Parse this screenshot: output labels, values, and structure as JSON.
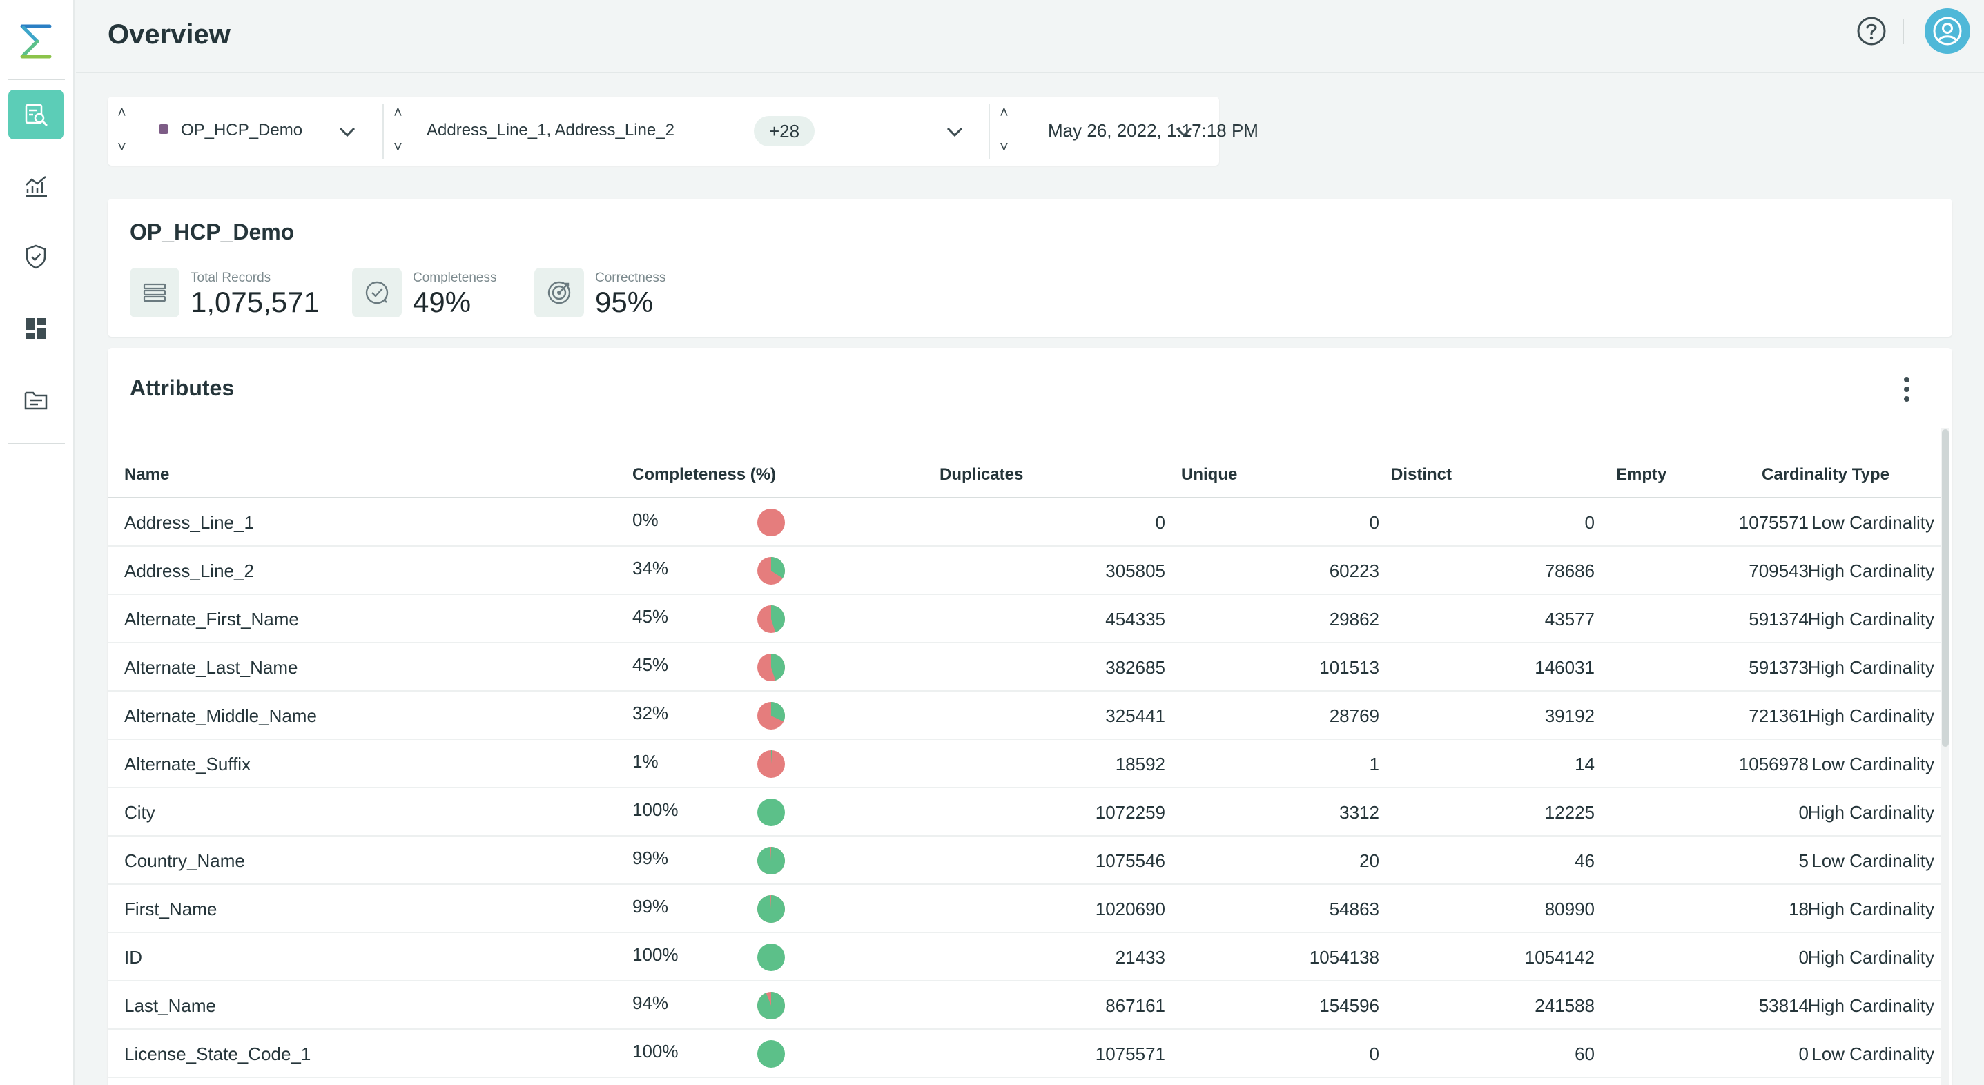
{
  "header": {
    "title": "Overview"
  },
  "colors": {
    "accent": "#5ccdb7",
    "pie_complete": "#5cc089",
    "pie_empty": "#e57d7d",
    "avatar": "#4fb8d8"
  },
  "filters": {
    "dataset": "OP_HCP_Demo",
    "attributes": "Address_Line_1, Address_Line_2",
    "attributes_more": "+28",
    "timestamp": "May 26, 2022, 1:17:18 PM"
  },
  "summary": {
    "title": "OP_HCP_Demo",
    "kpis": [
      {
        "label": "Total Records",
        "value": "1,075,571",
        "icon": "records-icon"
      },
      {
        "label": "Completeness",
        "value": "49%",
        "icon": "completeness-icon"
      },
      {
        "label": "Correctness",
        "value": "95%",
        "icon": "target-icon"
      }
    ]
  },
  "attributes": {
    "title": "Attributes",
    "columns": [
      "Name",
      "Completeness (%)",
      "Duplicates",
      "Unique",
      "Distinct",
      "Empty",
      "Cardinality Type"
    ],
    "rows": [
      {
        "name": "Address_Line_1",
        "completeness": "0%",
        "pct": 0,
        "duplicates": "0",
        "unique": "0",
        "distinct": "0",
        "empty": "1075571",
        "cardinality": "Low Cardinality"
      },
      {
        "name": "Address_Line_2",
        "completeness": "34%",
        "pct": 34,
        "duplicates": "305805",
        "unique": "60223",
        "distinct": "78686",
        "empty": "709543",
        "cardinality": "High Cardinality"
      },
      {
        "name": "Alternate_First_Name",
        "completeness": "45%",
        "pct": 45,
        "duplicates": "454335",
        "unique": "29862",
        "distinct": "43577",
        "empty": "591374",
        "cardinality": "High Cardinality"
      },
      {
        "name": "Alternate_Last_Name",
        "completeness": "45%",
        "pct": 45,
        "duplicates": "382685",
        "unique": "101513",
        "distinct": "146031",
        "empty": "591373",
        "cardinality": "High Cardinality"
      },
      {
        "name": "Alternate_Middle_Name",
        "completeness": "32%",
        "pct": 32,
        "duplicates": "325441",
        "unique": "28769",
        "distinct": "39192",
        "empty": "721361",
        "cardinality": "High Cardinality"
      },
      {
        "name": "Alternate_Suffix",
        "completeness": "1%",
        "pct": 1,
        "duplicates": "18592",
        "unique": "1",
        "distinct": "14",
        "empty": "1056978",
        "cardinality": "Low Cardinality"
      },
      {
        "name": "City",
        "completeness": "100%",
        "pct": 100,
        "duplicates": "1072259",
        "unique": "3312",
        "distinct": "12225",
        "empty": "0",
        "cardinality": "High Cardinality"
      },
      {
        "name": "Country_Name",
        "completeness": "99%",
        "pct": 99,
        "duplicates": "1075546",
        "unique": "20",
        "distinct": "46",
        "empty": "5",
        "cardinality": "Low Cardinality"
      },
      {
        "name": "First_Name",
        "completeness": "99%",
        "pct": 99,
        "duplicates": "1020690",
        "unique": "54863",
        "distinct": "80990",
        "empty": "18",
        "cardinality": "High Cardinality"
      },
      {
        "name": "ID",
        "completeness": "100%",
        "pct": 100,
        "duplicates": "21433",
        "unique": "1054138",
        "distinct": "1054142",
        "empty": "0",
        "cardinality": "High Cardinality"
      },
      {
        "name": "Last_Name",
        "completeness": "94%",
        "pct": 94,
        "duplicates": "867161",
        "unique": "154596",
        "distinct": "241588",
        "empty": "53814",
        "cardinality": "High Cardinality"
      },
      {
        "name": "License_State_Code_1",
        "completeness": "100%",
        "pct": 100,
        "duplicates": "1075571",
        "unique": "0",
        "distinct": "60",
        "empty": "0",
        "cardinality": "Low Cardinality"
      }
    ]
  }
}
